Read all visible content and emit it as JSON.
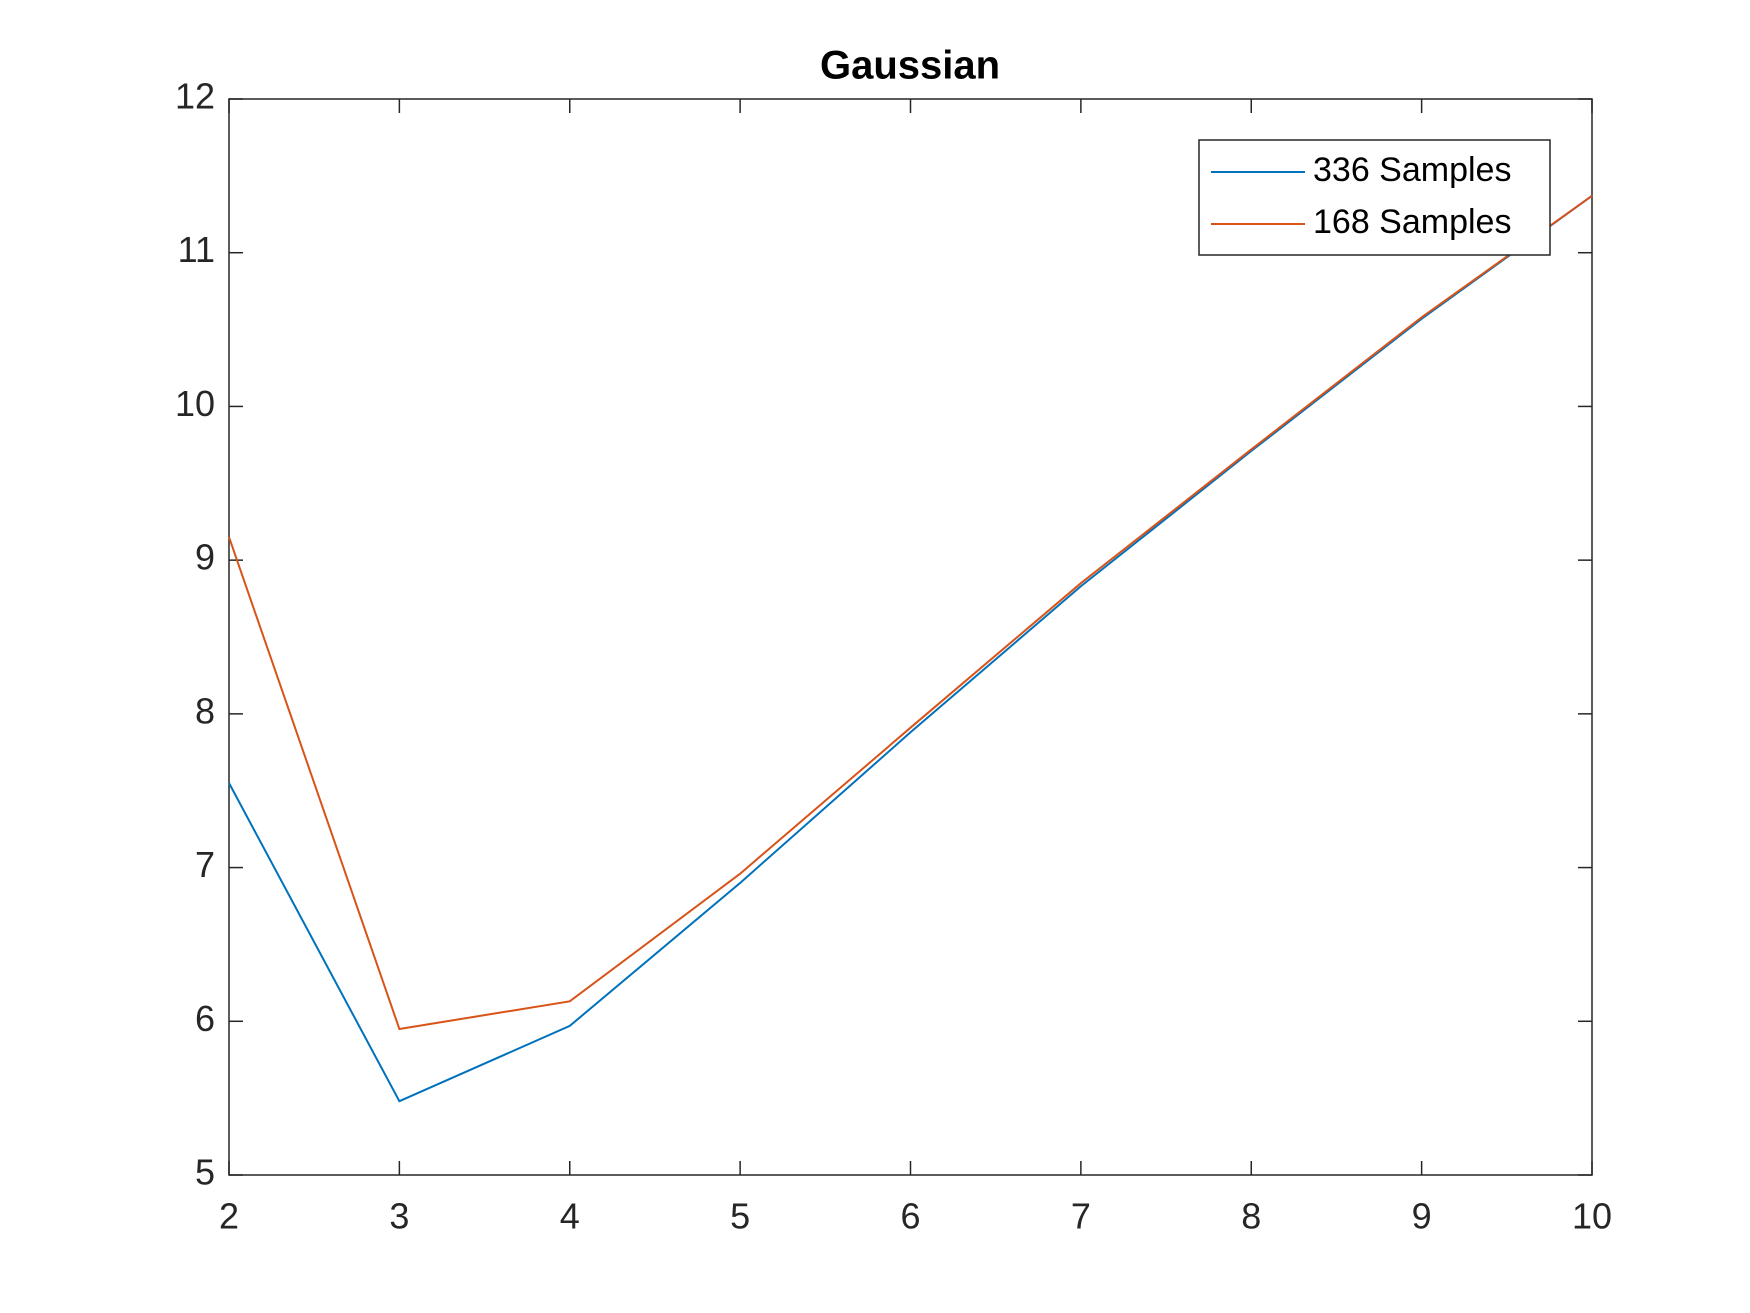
{
  "chart_data": {
    "type": "line",
    "title": "Gaussian",
    "x": [
      2,
      3,
      4,
      5,
      6,
      7,
      8,
      9,
      10
    ],
    "series": [
      {
        "name": "336 Samples",
        "color": "#0072bd",
        "values": [
          7.55,
          5.48,
          5.97,
          6.9,
          7.88,
          8.83,
          9.71,
          10.57,
          11.37
        ]
      },
      {
        "name": "168 Samples",
        "color": "#d95319",
        "values": [
          9.15,
          5.95,
          6.13,
          6.96,
          7.91,
          8.85,
          9.72,
          10.58,
          11.37
        ]
      }
    ],
    "xlim": [
      2,
      10
    ],
    "xticks": [
      2,
      3,
      4,
      5,
      6,
      7,
      8,
      9,
      10
    ],
    "ylim": [
      5,
      12
    ],
    "yticks": [
      5,
      6,
      7,
      8,
      9,
      10,
      11,
      12
    ],
    "grid": false,
    "legend": "northeast"
  }
}
